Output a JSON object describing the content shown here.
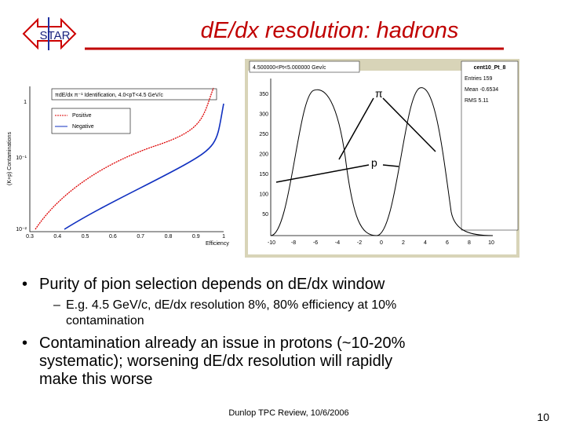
{
  "logo": "STAR",
  "title": "dE/dx resolution: hadrons",
  "left_plot": {
    "title": "πdE/dx π⁻¹ Identification, 4.0<pT<4.5 GeV/c",
    "legend": [
      "Positive",
      "Negative"
    ],
    "y_label": "(K+p) Contaminations",
    "x_label": "Efficiency",
    "x_ticks": [
      "0.3",
      "0.4",
      "0.5",
      "0.6",
      "0.7",
      "0.8",
      "0.9",
      "1"
    ],
    "y_ticks": [
      "1",
      "10⁻¹",
      "10⁻²"
    ]
  },
  "right_plot": {
    "title": "4.500000<Pt<5.000000 Gev/c",
    "name": "cent10_Pt_8",
    "stats": [
      "Entries 159",
      "Mean -0.6534",
      "RMS 5.11"
    ],
    "y_ticks": [
      "350",
      "300",
      "250",
      "200",
      "150",
      "100",
      "50"
    ],
    "x_ticks": [
      "-10",
      "-8",
      "-6",
      "-4",
      "-2",
      "0",
      "2",
      "4",
      "6",
      "8",
      "10"
    ],
    "pion_label": "π",
    "proton_label": "p"
  },
  "bullets": [
    {
      "lines": [
        "Purity of pion selection depends on dE/dx window"
      ],
      "sub": {
        "lines": [
          "E.g. 4.5 GeV/c, dE/dx resolution 8%, 80% efficiency at 10%",
          "contamination"
        ]
      }
    },
    {
      "lines": [
        "Contamination already an issue in protons (~10-20%",
        "systematic); worsening dE/dx resolution will rapidly",
        "make this worse"
      ]
    }
  ],
  "footer": "Dunlop TPC Review, 10/6/2006",
  "page_number": "10"
}
